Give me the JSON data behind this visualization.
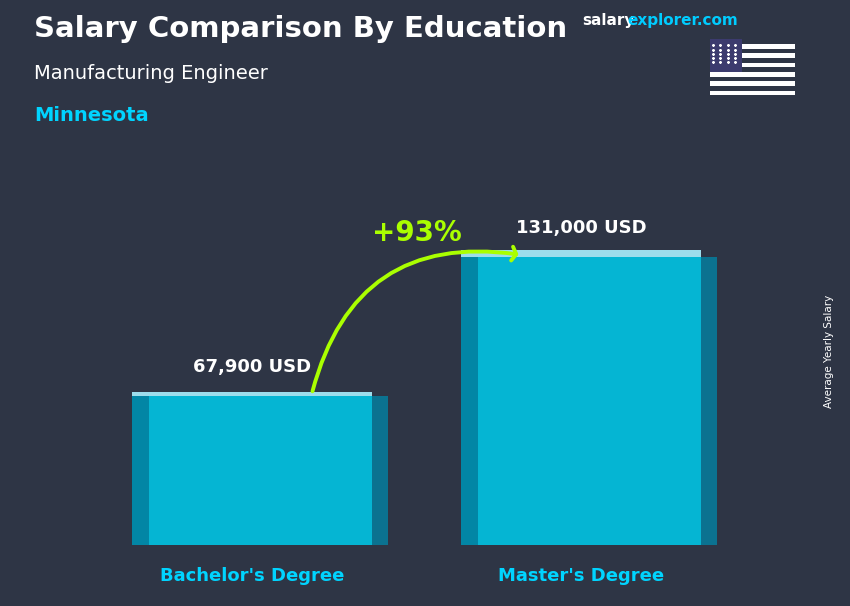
{
  "title_main": "Salary Comparison By Education",
  "subtitle": "Manufacturing Engineer",
  "location": "Minnesota",
  "ylabel_rotated": "Average Yearly Salary",
  "categories": [
    "Bachelor's Degree",
    "Master's Degree"
  ],
  "values": [
    67900,
    131000
  ],
  "value_labels": [
    "67,900 USD",
    "131,000 USD"
  ],
  "bar_color_face": "#00c8e8",
  "bar_color_side": "#0088aa",
  "bar_color_top": "#aaf0ff",
  "bar_color_shadow": "#006080",
  "pct_label": "+93%",
  "pct_color": "#aaff00",
  "arrow_color": "#aaff00",
  "location_color": "#00d4ff",
  "category_label_color": "#00d4ff",
  "fig_width": 8.5,
  "fig_height": 6.06,
  "bar_width": 0.32,
  "bar_positions": [
    0.28,
    0.72
  ],
  "ylim_max": 165000,
  "bg_color": "#1c1c2e",
  "watermark_salary_color": "#ffffff",
  "watermark_explorer_color": "#00ccff"
}
